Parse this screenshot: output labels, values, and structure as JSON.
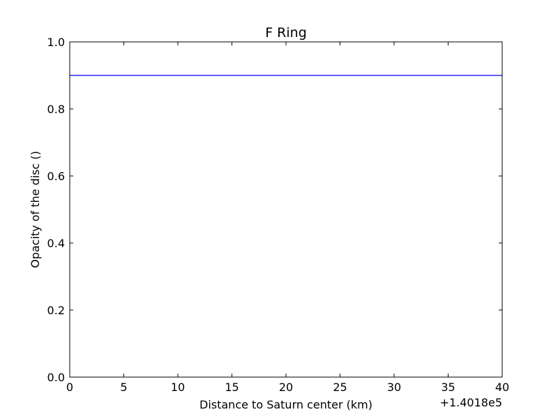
{
  "chart_data": {
    "type": "line",
    "title": "F Ring",
    "xlabel": "Distance to Saturn center (km)",
    "ylabel": "Opacity of the disc ()",
    "x_offset_label": "+1.4018e5",
    "xlim": [
      0,
      40
    ],
    "ylim": [
      0.0,
      1.0
    ],
    "x_ticks": [
      0,
      5,
      10,
      15,
      20,
      25,
      30,
      35,
      40
    ],
    "x_tick_labels": [
      "0",
      "5",
      "10",
      "15",
      "20",
      "25",
      "30",
      "35",
      "40"
    ],
    "y_ticks": [
      0.0,
      0.2,
      0.4,
      0.6,
      0.8,
      1.0
    ],
    "y_tick_labels": [
      "0.0",
      "0.2",
      "0.4",
      "0.6",
      "0.8",
      "1.0"
    ],
    "grid": false,
    "series": [
      {
        "color": "#0000ff",
        "x": [
          0,
          40
        ],
        "y": [
          0.9,
          0.9
        ]
      }
    ]
  }
}
